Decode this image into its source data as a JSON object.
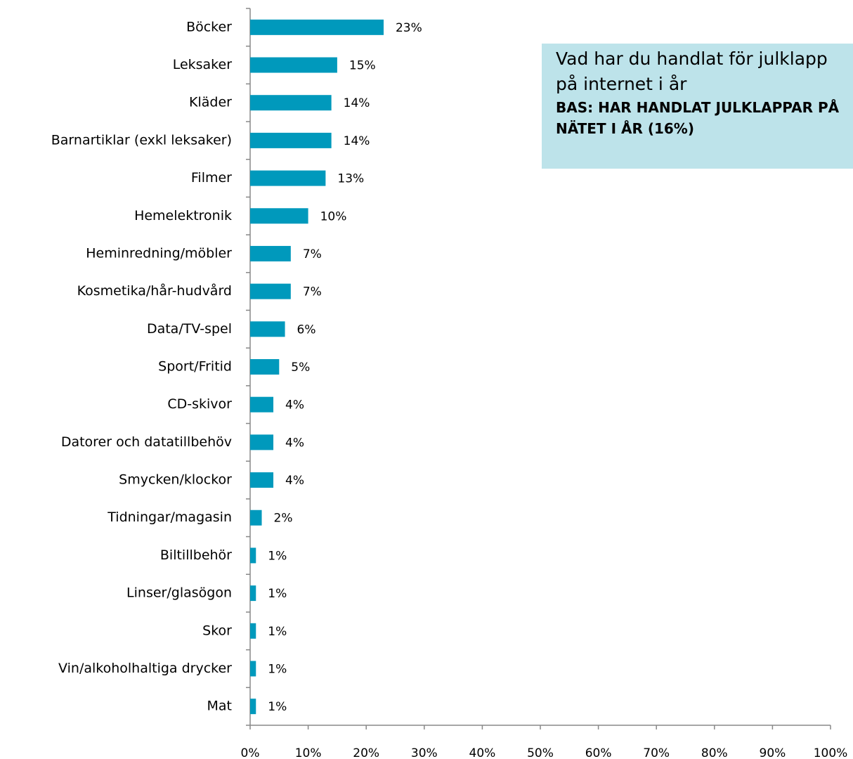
{
  "chart_data": {
    "type": "hbar",
    "title": "Vad har du handlat för julklapp på internet i år",
    "subtitle": "BAS: HAR HANDLAT JULKLAPPAR PÅ NÄTET I ÅR (16%)",
    "categories": [
      "Böcker",
      "Leksaker",
      "Kläder",
      "Barnartiklar (exkl leksaker)",
      "Filmer",
      "Hemelektronik",
      "Heminredning/möbler",
      "Kosmetika/hår-hudvård",
      "Data/TV-spel",
      "Sport/Fritid",
      "CD-skivor",
      "Datorer och datatillbehöv",
      "Smycken/klockor",
      "Tidningar/magasin",
      "Biltillbehör",
      "Linser/glasögon",
      "Skor",
      "Vin/alkoholhaltiga drycker",
      "Mat"
    ],
    "values": [
      23,
      15,
      14,
      14,
      13,
      10,
      7,
      7,
      6,
      5,
      4,
      4,
      4,
      2,
      1,
      1,
      1,
      1,
      1
    ],
    "value_labels": [
      "23%",
      "15%",
      "14%",
      "14%",
      "13%",
      "10%",
      "7%",
      "7%",
      "6%",
      "5%",
      "4%",
      "4%",
      "4%",
      "2%",
      "1%",
      "1%",
      "1%",
      "1%",
      "1%"
    ],
    "color": "#0099bc",
    "xlim": [
      0,
      100
    ],
    "xticks": [
      {
        "value": 0,
        "label": "0%"
      },
      {
        "value": 10,
        "label": "10%"
      },
      {
        "value": 20,
        "label": "20%"
      },
      {
        "value": 30,
        "label": "30%"
      },
      {
        "value": 40,
        "label": "40%"
      },
      {
        "value": 50,
        "label": "50%"
      },
      {
        "value": 60,
        "label": "60%"
      },
      {
        "value": 70,
        "label": "70%"
      },
      {
        "value": 80,
        "label": "80%"
      },
      {
        "value": 90,
        "label": "90%"
      },
      {
        "value": 100,
        "label": "100%"
      }
    ]
  }
}
